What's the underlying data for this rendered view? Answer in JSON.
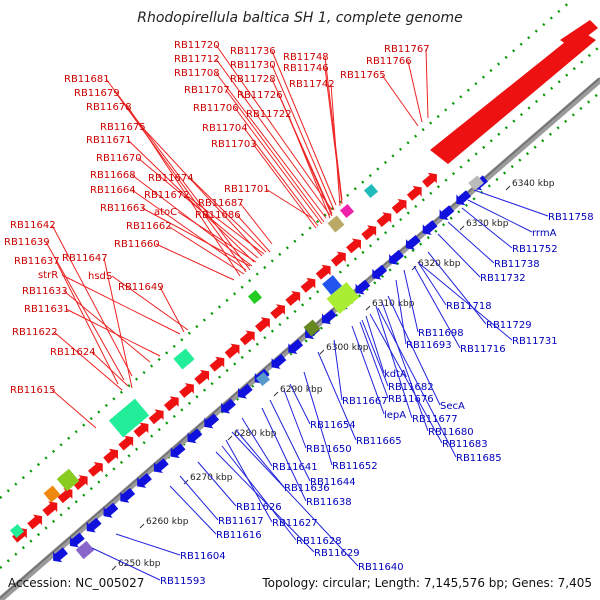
{
  "title": "Rhodopirellula baltica SH 1, complete genome",
  "footer": {
    "accession": "Accession: NC_005027",
    "info": "Topology: circular; Length: 7,145,576 bp; Genes: 7,405"
  },
  "ruler": [
    "6250 kbp",
    "6260 kbp",
    "6270 kbp",
    "6280 kbp",
    "6290 kbp",
    "6300 kbp",
    "6310 kbp",
    "6320 kbp",
    "6330 kbp",
    "6340 kbp"
  ],
  "forward_genes": [
    "RB11720",
    "RB11736",
    "RB11748",
    "RB11767",
    "RB11712",
    "RB11730",
    "RB11746",
    "RB11766",
    "RB11708",
    "RB11728",
    "RB11742",
    "RB11765",
    "RB11681",
    "RB11707",
    "RB11726",
    "RB11679",
    "RB11706",
    "RB11722",
    "RB11678",
    "RB11704",
    "RB11675",
    "RB11703",
    "RB11671",
    "RB11670",
    "RB11674",
    "RB11668",
    "RB11701",
    "RB11664",
    "RB11672",
    "RB11687",
    "RB11663",
    "atoC",
    "RB11686",
    "RB11662",
    "RB11642",
    "RB11660",
    "RB11639",
    "RB11647",
    "RB11637",
    "strR",
    "hsdS",
    "RB11649",
    "RB11633",
    "RB11631",
    "RB11622",
    "RB11624",
    "RB11615"
  ],
  "reverse_genes": [
    "RB11758",
    "rrmA",
    "RB11752",
    "RB11738",
    "RB11732",
    "RB11718",
    "RB11729",
    "RB11698",
    "RB11731",
    "RB11693",
    "RB11716",
    "kdtA",
    "RB11682",
    "RB11667",
    "RB11676",
    "SecA",
    "lepA",
    "RB11677",
    "RB11654",
    "RB11680",
    "RB11665",
    "RB11683",
    "RB11650",
    "RB11685",
    "RB11652",
    "RB11641",
    "RB11644",
    "RB11636",
    "RB11638",
    "RB11626",
    "RB11617",
    "RB11627",
    "RB11616",
    "RB11628",
    "RB11629",
    "RB11604",
    "RB11640",
    "RB11593"
  ]
}
